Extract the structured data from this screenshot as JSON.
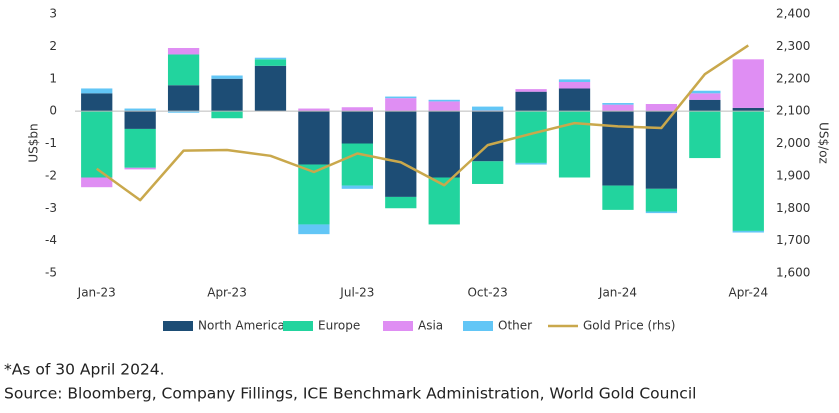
{
  "chart_data": {
    "type": "bar",
    "stacked": true,
    "y_label": "US$bn",
    "y2_label": "US$/oz",
    "categories": [
      "Jan-23",
      null,
      null,
      "Apr-23",
      null,
      null,
      "Jul-23",
      null,
      null,
      "Oct-23",
      null,
      null,
      "Jan-24",
      null,
      null,
      "Apr-24"
    ],
    "series": [
      {
        "name": "North America",
        "color": "#1d4d75",
        "values": [
          0.55,
          -0.55,
          0.8,
          1.0,
          1.4,
          -1.65,
          -1.0,
          -2.65,
          -2.05,
          -1.55,
          0.6,
          0.7,
          -2.3,
          -2.4,
          0.35,
          0.1
        ]
      },
      {
        "name": "Europe",
        "color": "#22d49e",
        "values": [
          -2.05,
          -1.2,
          0.95,
          -0.22,
          0.2,
          -1.85,
          -1.3,
          -0.35,
          -1.45,
          -0.7,
          -1.6,
          -2.05,
          -0.75,
          -0.7,
          -1.45,
          -3.7
        ]
      },
      {
        "name": "Asia",
        "color": "#df8ef3",
        "values": [
          -0.3,
          -0.05,
          0.2,
          0,
          0,
          0.08,
          0.12,
          0.4,
          0.3,
          0.02,
          0.08,
          0.2,
          0.2,
          0.22,
          0.2,
          1.5
        ]
      },
      {
        "name": "Other",
        "color": "#62c6f6",
        "values": [
          0.15,
          0.08,
          -0.05,
          0.1,
          0.05,
          -0.3,
          -0.1,
          0.05,
          0.05,
          0.12,
          -0.05,
          0.08,
          0.05,
          -0.05,
          0.08,
          -0.05
        ]
      },
      {
        "name": "Gold Price (rhs)",
        "type": "line",
        "axis": "y2",
        "color": "#c9a84c",
        "values": [
          1922,
          1825,
          1978,
          1980,
          1962,
          1912,
          1969,
          1942,
          1871,
          1995,
          2030,
          2063,
          2053,
          2048,
          2214,
          2303
        ]
      }
    ],
    "ylim": [
      -5,
      3
    ],
    "yticks": [
      -5,
      -4,
      -3,
      -2,
      -1,
      0,
      1,
      2,
      3
    ],
    "y2lim": [
      1600,
      2400
    ],
    "y2ticks": [
      {
        "value": 1600,
        "label": "1,600"
      },
      {
        "value": 1700,
        "label": "1,700"
      },
      {
        "value": 1800,
        "label": "1,800"
      },
      {
        "value": 1900,
        "label": "1,900"
      },
      {
        "value": 2000,
        "label": "2,000"
      },
      {
        "value": 2100,
        "label": "2,100"
      },
      {
        "value": 2200,
        "label": "2,200"
      },
      {
        "value": 2300,
        "label": "2,300"
      },
      {
        "value": 2400,
        "label": "2,400"
      }
    ],
    "legend": "bottom"
  },
  "notes": [
    "*As of 30 April 2024.",
    "Source: Bloomberg, Company Fillings, ICE Benchmark Administration, World Gold Council"
  ]
}
